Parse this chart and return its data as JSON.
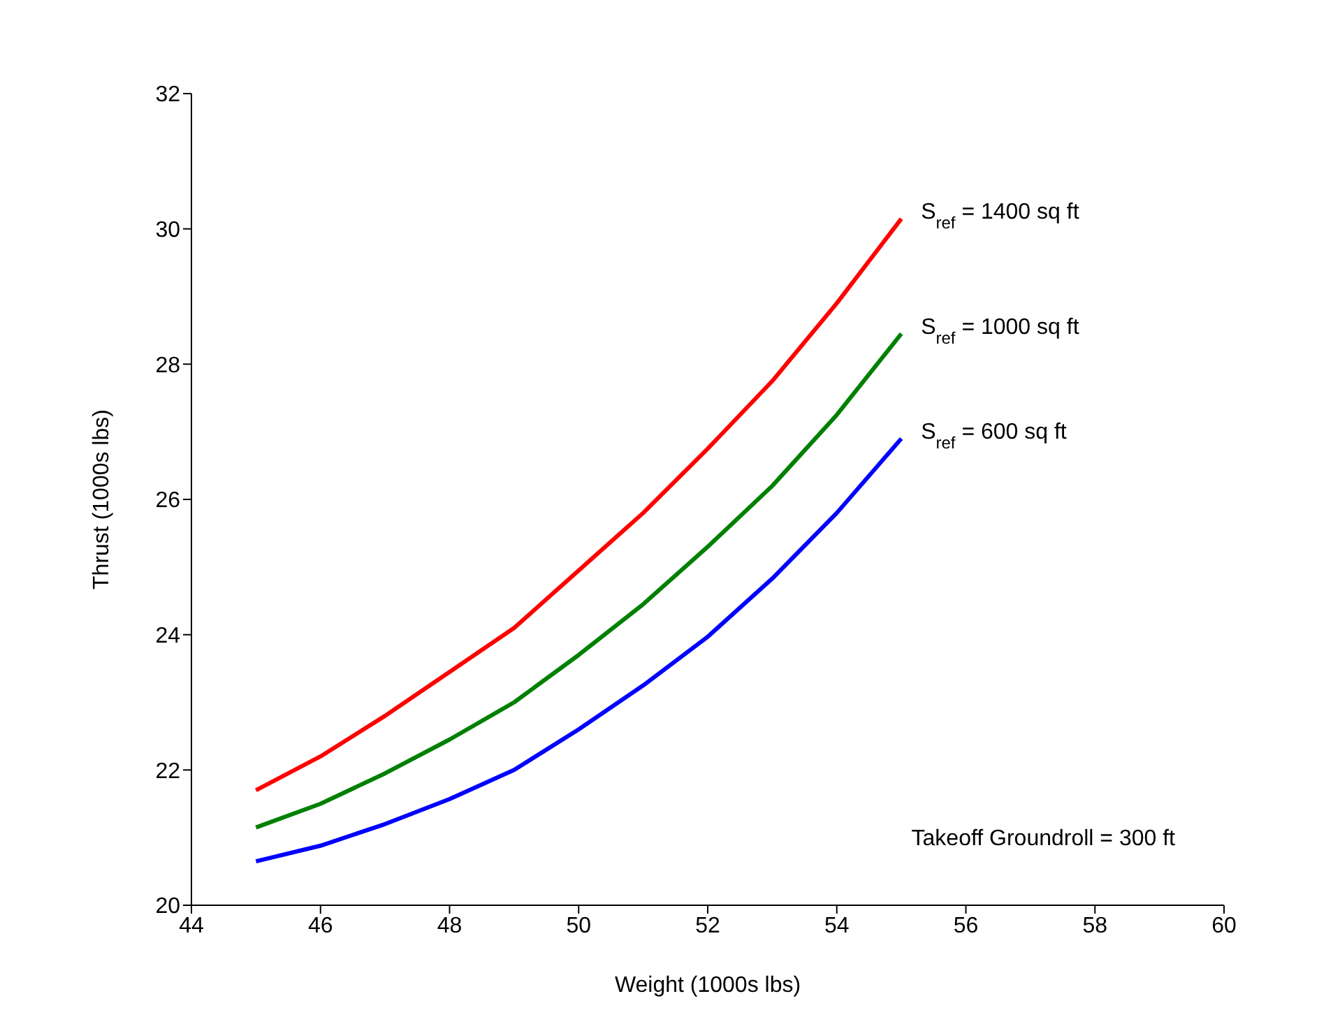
{
  "chart_data": {
    "type": "line",
    "xlabel": "Weight (1000s lbs)",
    "ylabel": "Thrust (1000s lbs)",
    "x": [
      45,
      46,
      47,
      48,
      49,
      50,
      51,
      52,
      53,
      54,
      55
    ],
    "series": [
      {
        "name": "S$_{ref}$ = 1400 sq ft",
        "color": "#ff0000",
        "values": [
          21.7,
          22.2,
          22.8,
          23.45,
          24.1,
          24.95,
          25.8,
          26.75,
          27.75,
          28.9,
          30.15
        ]
      },
      {
        "name": "S$_{ref}$ = 1000 sq ft",
        "color": "#008000",
        "values": [
          21.15,
          21.5,
          21.95,
          22.45,
          23.0,
          23.7,
          24.45,
          25.3,
          26.2,
          27.25,
          28.45
        ]
      },
      {
        "name": "S$_{ref}$ = 600 sq ft",
        "color": "#0000ff",
        "values": [
          20.65,
          20.88,
          21.2,
          21.57,
          22.0,
          22.6,
          23.25,
          23.97,
          24.83,
          25.8,
          26.9
        ]
      }
    ],
    "xlim": [
      44,
      60
    ],
    "xticks": [
      44,
      46,
      48,
      50,
      52,
      54,
      56,
      58,
      60
    ],
    "ylim": [
      20,
      32
    ],
    "yticks": [
      20,
      22,
      24,
      26,
      28,
      30,
      32
    ],
    "grid": false,
    "legend": false,
    "marker": "none",
    "line_style": "solid",
    "annotations": [
      "Takeoff Groundroll = 300 ft"
    ]
  }
}
